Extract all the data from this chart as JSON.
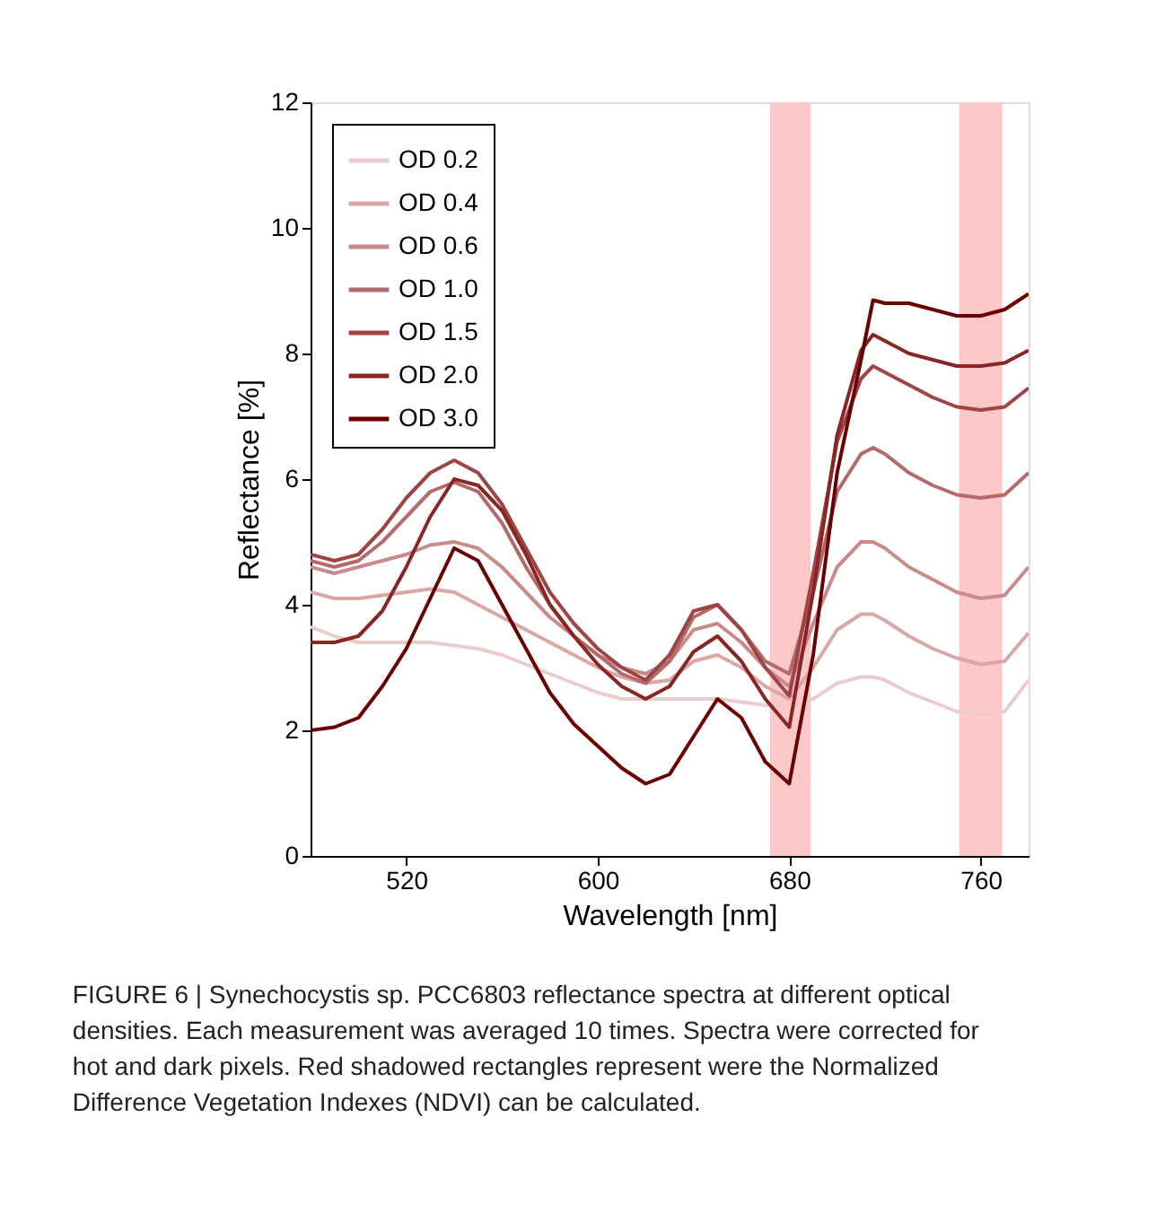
{
  "chart_data": {
    "type": "line",
    "xlabel": "Wavelength [nm]",
    "ylabel": "Reflectance [%]",
    "x": [
      480,
      490,
      500,
      510,
      520,
      530,
      540,
      550,
      560,
      570,
      580,
      590,
      600,
      610,
      620,
      630,
      640,
      650,
      660,
      670,
      680,
      690,
      700,
      710,
      715,
      720,
      730,
      740,
      750,
      760,
      770,
      780
    ],
    "series": [
      {
        "name": "OD 0.2",
        "color": "#ebcccc",
        "values": [
          3.65,
          3.5,
          3.4,
          3.4,
          3.4,
          3.4,
          3.35,
          3.3,
          3.2,
          3.05,
          2.9,
          2.75,
          2.6,
          2.5,
          2.5,
          2.5,
          2.5,
          2.5,
          2.45,
          2.4,
          2.35,
          2.5,
          2.75,
          2.85,
          2.85,
          2.8,
          2.6,
          2.45,
          2.3,
          2.25,
          2.3,
          2.8
        ]
      },
      {
        "name": "OD 0.4",
        "color": "#dba6a6",
        "values": [
          4.2,
          4.1,
          4.1,
          4.15,
          4.2,
          4.25,
          4.2,
          4.0,
          3.8,
          3.6,
          3.4,
          3.2,
          3.0,
          2.85,
          2.75,
          2.8,
          3.1,
          3.2,
          3.0,
          2.7,
          2.5,
          3.0,
          3.6,
          3.85,
          3.85,
          3.75,
          3.5,
          3.3,
          3.15,
          3.05,
          3.1,
          3.55
        ]
      },
      {
        "name": "OD 0.6",
        "color": "#c98a8a",
        "values": [
          4.6,
          4.5,
          4.6,
          4.7,
          4.8,
          4.95,
          5.0,
          4.9,
          4.6,
          4.2,
          3.8,
          3.5,
          3.2,
          3.0,
          2.9,
          3.1,
          3.6,
          3.7,
          3.4,
          3.0,
          2.7,
          3.7,
          4.6,
          5.0,
          5.0,
          4.9,
          4.6,
          4.4,
          4.2,
          4.1,
          4.15,
          4.6
        ]
      },
      {
        "name": "OD 1.0",
        "color": "#b46a6a",
        "values": [
          4.7,
          4.6,
          4.7,
          5.0,
          5.4,
          5.8,
          5.95,
          5.8,
          5.3,
          4.6,
          4.0,
          3.5,
          3.2,
          2.9,
          2.75,
          3.1,
          3.8,
          4.0,
          3.6,
          3.1,
          2.9,
          4.2,
          5.8,
          6.4,
          6.5,
          6.4,
          6.1,
          5.9,
          5.75,
          5.7,
          5.75,
          6.1
        ]
      },
      {
        "name": "OD 1.5",
        "color": "#9e4444",
        "values": [
          4.8,
          4.7,
          4.8,
          5.2,
          5.7,
          6.1,
          6.3,
          6.1,
          5.6,
          4.9,
          4.2,
          3.7,
          3.3,
          3.0,
          2.8,
          3.2,
          3.9,
          4.0,
          3.6,
          3.0,
          2.55,
          4.5,
          6.6,
          7.6,
          7.8,
          7.7,
          7.5,
          7.3,
          7.15,
          7.1,
          7.15,
          7.45
        ]
      },
      {
        "name": "OD 2.0",
        "color": "#8a2525",
        "values": [
          3.4,
          3.4,
          3.5,
          3.9,
          4.6,
          5.4,
          6.0,
          5.9,
          5.5,
          4.8,
          4.0,
          3.5,
          3.05,
          2.7,
          2.5,
          2.7,
          3.25,
          3.5,
          3.1,
          2.5,
          2.05,
          4.2,
          6.7,
          8.05,
          8.3,
          8.2,
          8.0,
          7.9,
          7.8,
          7.8,
          7.85,
          8.05
        ]
      },
      {
        "name": "OD 3.0",
        "color": "#6b0000",
        "values": [
          2.0,
          2.05,
          2.2,
          2.7,
          3.3,
          4.1,
          4.9,
          4.7,
          4.0,
          3.3,
          2.6,
          2.1,
          1.75,
          1.4,
          1.15,
          1.3,
          1.9,
          2.5,
          2.2,
          1.5,
          1.15,
          3.2,
          6.1,
          7.9,
          8.85,
          8.8,
          8.8,
          8.7,
          8.6,
          8.6,
          8.7,
          8.95
        ]
      }
    ],
    "xlim": [
      480,
      780
    ],
    "xticks": [
      520,
      600,
      680,
      760
    ],
    "ylim": [
      0,
      12
    ],
    "yticks": [
      0,
      2,
      4,
      6,
      8,
      10,
      12
    ],
    "bands": [
      {
        "axis": "x",
        "from": 672,
        "to": 689,
        "color": "#ffc8c8"
      },
      {
        "axis": "x",
        "from": 751,
        "to": 769,
        "color": "#ffc8c8"
      }
    ],
    "grid": false,
    "legend": "top left",
    "line_style": "solid",
    "marker": "none",
    "annotations": [
      "FIGURE 6 | Synechocystis sp. PCC6803 reflectance spectra at different optical densities. Each measurement was averaged 10 times. Spectra were corrected for hot and dark pixels. Red shadowed rectangles represent were the Normalized Difference Vegetation Indexes (NDVI) can be calculated."
    ]
  }
}
